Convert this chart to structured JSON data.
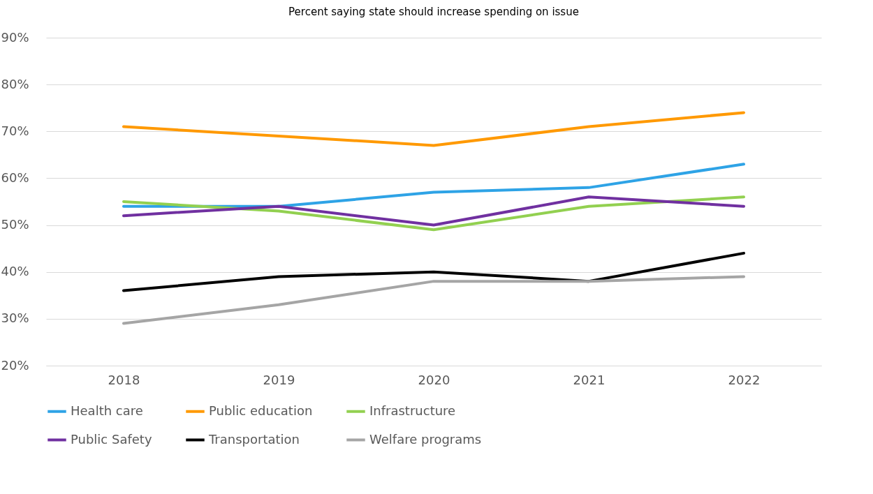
{
  "chart_data": {
    "type": "line",
    "title": "Percent saying state should increase spending on issue",
    "categories": [
      "2018",
      "2019",
      "2020",
      "2021",
      "2022"
    ],
    "series": [
      {
        "name": "Health care",
        "color": "#2ea3e6",
        "values": [
          54,
          54,
          57,
          58,
          63
        ]
      },
      {
        "name": "Public education",
        "color": "#ff9900",
        "values": [
          71,
          69,
          67,
          71,
          74
        ]
      },
      {
        "name": "Infrastructure",
        "color": "#92d050",
        "values": [
          55,
          53,
          49,
          54,
          56
        ]
      },
      {
        "name": "Public Safety",
        "color": "#7030a0",
        "values": [
          52,
          54,
          50,
          56,
          54
        ]
      },
      {
        "name": "Transportation",
        "color": "#000000",
        "values": [
          36,
          39,
          40,
          38,
          44
        ]
      },
      {
        "name": "Welfare programs",
        "color": "#a5a5a5",
        "values": [
          29,
          33,
          38,
          38,
          39
        ]
      }
    ],
    "ylim": [
      20,
      90
    ],
    "yticks": [
      {
        "value": 20,
        "label": "20%"
      },
      {
        "value": 30,
        "label": "30%"
      },
      {
        "value": 40,
        "label": "40%"
      },
      {
        "value": 50,
        "label": "50%"
      },
      {
        "value": 60,
        "label": "60%"
      },
      {
        "value": 70,
        "label": "70%"
      },
      {
        "value": 80,
        "label": "80%"
      },
      {
        "value": 90,
        "label": "90%"
      }
    ],
    "grid": "y",
    "legend": "bottom",
    "line_style": "solid"
  }
}
